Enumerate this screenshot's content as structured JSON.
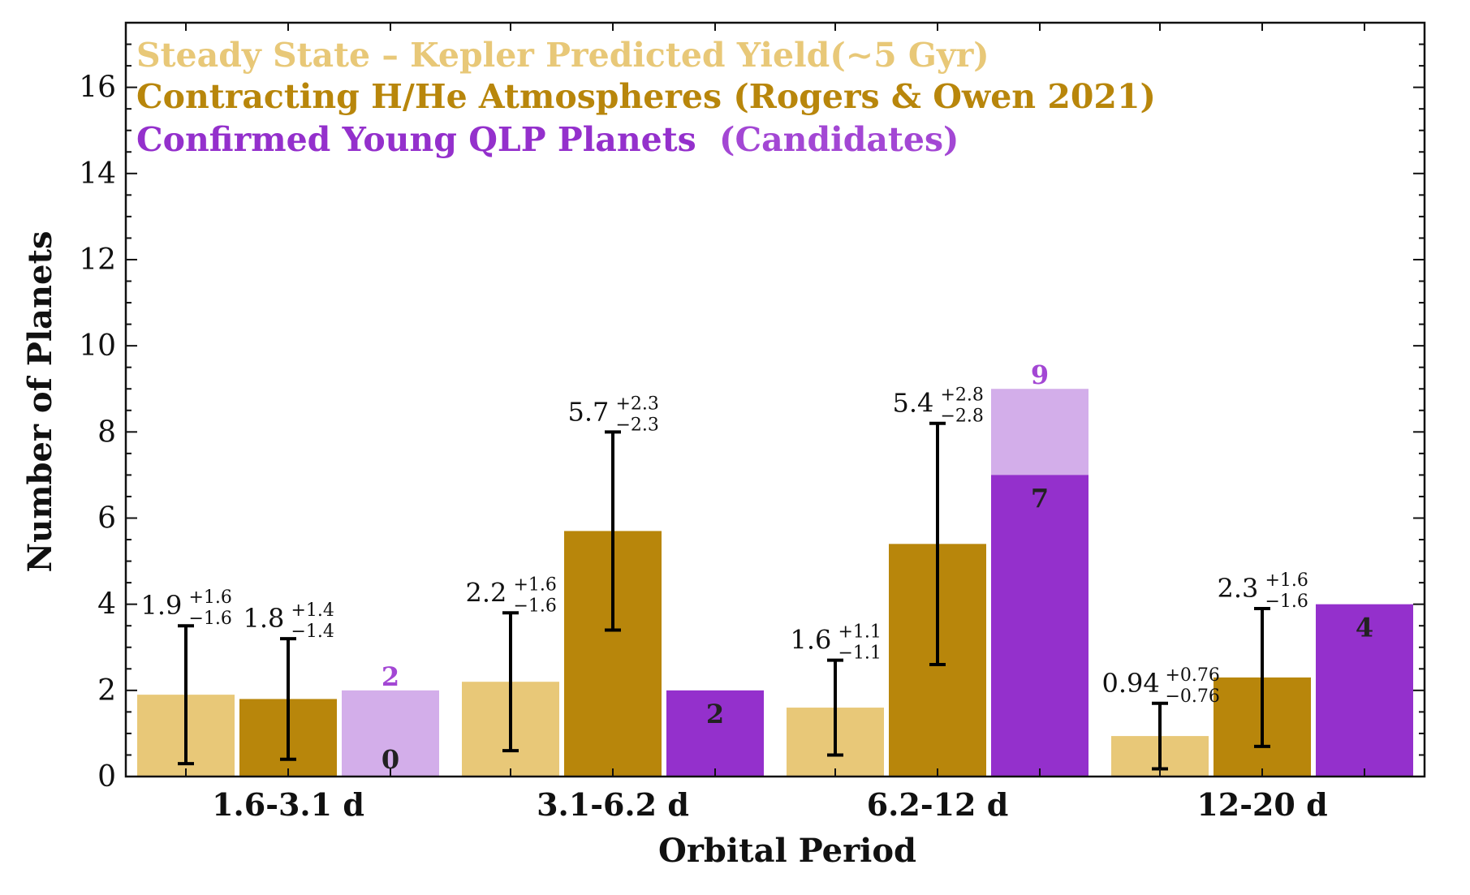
{
  "chart_data": {
    "type": "bar",
    "xlabel": "Orbital Period",
    "ylabel": "Number of Planets",
    "ylim": [
      0,
      17.5
    ],
    "yticks": [
      0,
      2,
      4,
      6,
      8,
      10,
      12,
      14,
      16
    ],
    "categories": [
      "1.6-3.1 d",
      "3.1-6.2 d",
      "6.2-12 d",
      "12-20 d"
    ],
    "colors": {
      "steady": "#e8c878",
      "contracting": "#b8860b",
      "confirmed": "#9430cc",
      "candidates": "#d3aeea",
      "candidates_text": "#a347d4",
      "error_bar": "#000000"
    },
    "legend": {
      "placement": "top-left",
      "steady_label": "Steady State – Kepler Predicted Yield(∼5 Gyr)",
      "contracting_label": "Contracting H/He Atmospheres (Rogers & Owen 2021)",
      "confirmed_label": "Confirmed Young QLP Planets",
      "candidates_label": "(Candidates)"
    },
    "series": [
      {
        "name": "Steady State – Kepler Predicted Yield(∼5 Gyr)",
        "values": [
          1.9,
          2.2,
          1.6,
          0.94
        ],
        "err_plus": [
          1.6,
          1.6,
          1.1,
          0.76
        ],
        "err_minus": [
          1.6,
          1.6,
          1.1,
          0.76
        ],
        "labels": [
          {
            "main": "1.9",
            "plus": "+1.6",
            "minus": "−1.6"
          },
          {
            "main": "2.2",
            "plus": "+1.6",
            "minus": "−1.6"
          },
          {
            "main": "1.6",
            "plus": "+1.1",
            "minus": "−1.1"
          },
          {
            "main": "0.94",
            "plus": "+0.76",
            "minus": "−0.76"
          }
        ]
      },
      {
        "name": "Contracting H/He Atmospheres (Rogers & Owen 2021)",
        "values": [
          1.8,
          5.7,
          5.4,
          2.3
        ],
        "err_plus": [
          1.4,
          2.3,
          2.8,
          1.6
        ],
        "err_minus": [
          1.4,
          2.3,
          2.8,
          1.6
        ],
        "labels": [
          {
            "main": "1.8",
            "plus": "+1.4",
            "minus": "−1.4"
          },
          {
            "main": "5.7",
            "plus": "+2.3",
            "minus": "−2.3"
          },
          {
            "main": "5.4",
            "plus": "+2.8",
            "minus": "−2.8"
          },
          {
            "main": "2.3",
            "plus": "+1.6",
            "minus": "−1.6"
          }
        ]
      },
      {
        "name": "Confirmed Young QLP Planets",
        "values": [
          0,
          2,
          7,
          4
        ],
        "labels": [
          "0",
          "2",
          "7",
          "4"
        ]
      },
      {
        "name": "Candidates",
        "totals": [
          2,
          2,
          9,
          4
        ],
        "labels": [
          "2",
          "",
          "9",
          ""
        ]
      }
    ]
  }
}
